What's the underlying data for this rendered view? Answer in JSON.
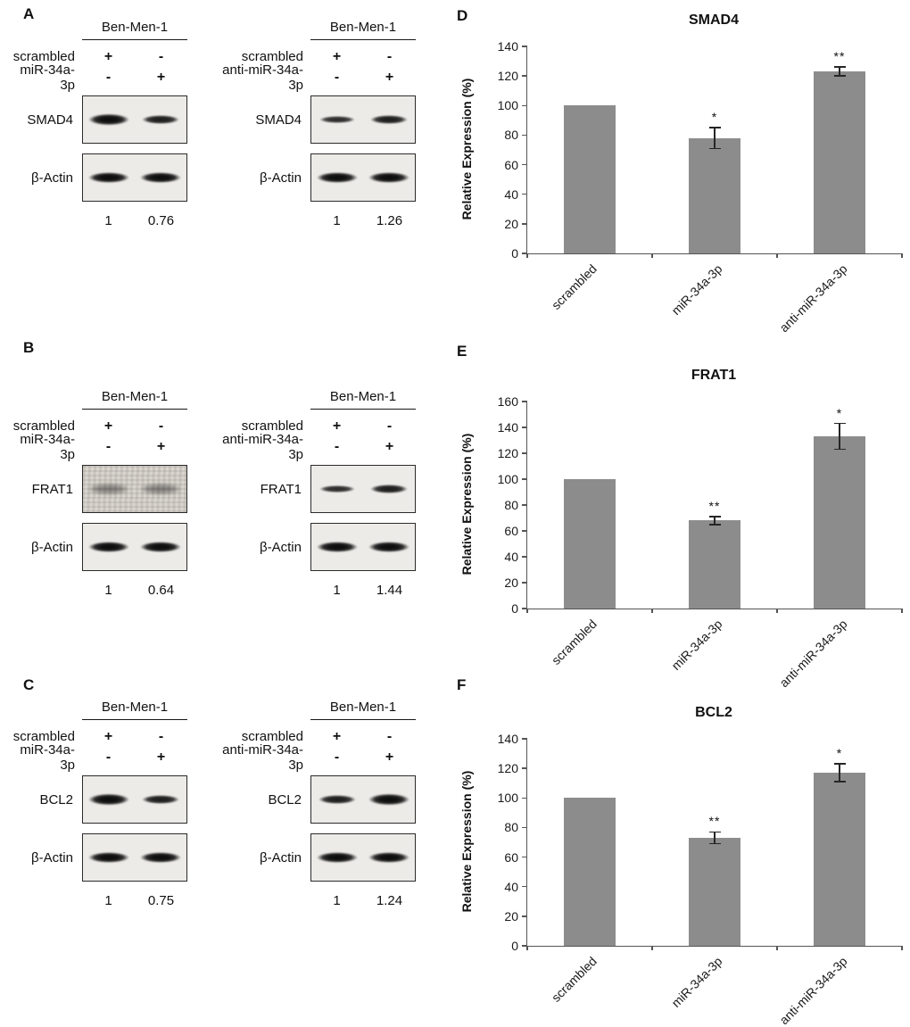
{
  "panels": {
    "A": {
      "label": "A",
      "blots": [
        {
          "cell_line": "Ben-Men-1",
          "conditions": [
            {
              "label": "scrambled",
              "lanes": [
                "+",
                "-"
              ]
            },
            {
              "label": "miR-34a-3p",
              "lanes": [
                "-",
                "+"
              ]
            }
          ],
          "proteins": [
            {
              "name": "SMAD4"
            },
            {
              "name": "β-Actin"
            }
          ],
          "quantification": [
            "1",
            "0.76"
          ]
        },
        {
          "cell_line": "Ben-Men-1",
          "conditions": [
            {
              "label": "scrambled",
              "lanes": [
                "+",
                "-"
              ]
            },
            {
              "label": "anti-miR-34a-3p",
              "lanes": [
                "-",
                "+"
              ]
            }
          ],
          "proteins": [
            {
              "name": "SMAD4"
            },
            {
              "name": "β-Actin"
            }
          ],
          "quantification": [
            "1",
            "1.26"
          ]
        }
      ]
    },
    "B": {
      "label": "B",
      "blots": [
        {
          "cell_line": "Ben-Men-1",
          "conditions": [
            {
              "label": "scrambled",
              "lanes": [
                "+",
                "-"
              ]
            },
            {
              "label": "miR-34a-3p",
              "lanes": [
                "-",
                "+"
              ]
            }
          ],
          "proteins": [
            {
              "name": "FRAT1"
            },
            {
              "name": "β-Actin"
            }
          ],
          "quantification": [
            "1",
            "0.64"
          ]
        },
        {
          "cell_line": "Ben-Men-1",
          "conditions": [
            {
              "label": "scrambled",
              "lanes": [
                "+",
                "-"
              ]
            },
            {
              "label": "anti-miR-34a-3p",
              "lanes": [
                "-",
                "+"
              ]
            }
          ],
          "proteins": [
            {
              "name": "FRAT1"
            },
            {
              "name": "β-Actin"
            }
          ],
          "quantification": [
            "1",
            "1.44"
          ]
        }
      ]
    },
    "C": {
      "label": "C",
      "blots": [
        {
          "cell_line": "Ben-Men-1",
          "conditions": [
            {
              "label": "scrambled",
              "lanes": [
                "+",
                "-"
              ]
            },
            {
              "label": "miR-34a-3p",
              "lanes": [
                "-",
                "+"
              ]
            }
          ],
          "proteins": [
            {
              "name": "BCL2"
            },
            {
              "name": "β-Actin"
            }
          ],
          "quantification": [
            "1",
            "0.75"
          ]
        },
        {
          "cell_line": "Ben-Men-1",
          "conditions": [
            {
              "label": "scrambled",
              "lanes": [
                "+",
                "-"
              ]
            },
            {
              "label": "anti-miR-34a-3p",
              "lanes": [
                "-",
                "+"
              ]
            }
          ],
          "proteins": [
            {
              "name": "BCL2"
            },
            {
              "name": "β-Actin"
            }
          ],
          "quantification": [
            "1",
            "1.24"
          ]
        }
      ]
    },
    "D": {
      "label": "D"
    },
    "E": {
      "label": "E"
    },
    "F": {
      "label": "F"
    }
  },
  "chart_data": [
    {
      "type": "bar",
      "panel": "D",
      "title": "SMAD4",
      "ylabel": "Relative Expression (%)",
      "categories": [
        "scrambled",
        "miR-34a-3p",
        "anti-miR-34a-3p"
      ],
      "values": [
        100,
        78,
        123
      ],
      "errors": [
        0,
        7,
        3
      ],
      "significance": [
        "",
        "*",
        "**"
      ],
      "ylim": [
        0,
        140
      ],
      "ytick_step": 20,
      "bar_color": "#8c8c8c",
      "grid": false,
      "legend": false
    },
    {
      "type": "bar",
      "panel": "E",
      "title": "FRAT1",
      "ylabel": "Relative Expression (%)",
      "categories": [
        "scrambled",
        "miR-34a-3p",
        "anti-miR-34a-3p"
      ],
      "values": [
        100,
        68,
        133
      ],
      "errors": [
        0,
        3,
        10
      ],
      "significance": [
        "",
        "**",
        "*"
      ],
      "ylim": [
        0,
        160
      ],
      "ytick_step": 20,
      "bar_color": "#8c8c8c",
      "grid": false,
      "legend": false
    },
    {
      "type": "bar",
      "panel": "F",
      "title": "BCL2",
      "ylabel": "Relative Expression (%)",
      "categories": [
        "scrambled",
        "miR-34a-3p",
        "anti-miR-34a-3p"
      ],
      "values": [
        100,
        73,
        117
      ],
      "errors": [
        0,
        4,
        6
      ],
      "significance": [
        "",
        "**",
        "*"
      ],
      "ylim": [
        0,
        140
      ],
      "ytick_step": 20,
      "bar_color": "#8c8c8c",
      "grid": false,
      "legend": false
    }
  ]
}
